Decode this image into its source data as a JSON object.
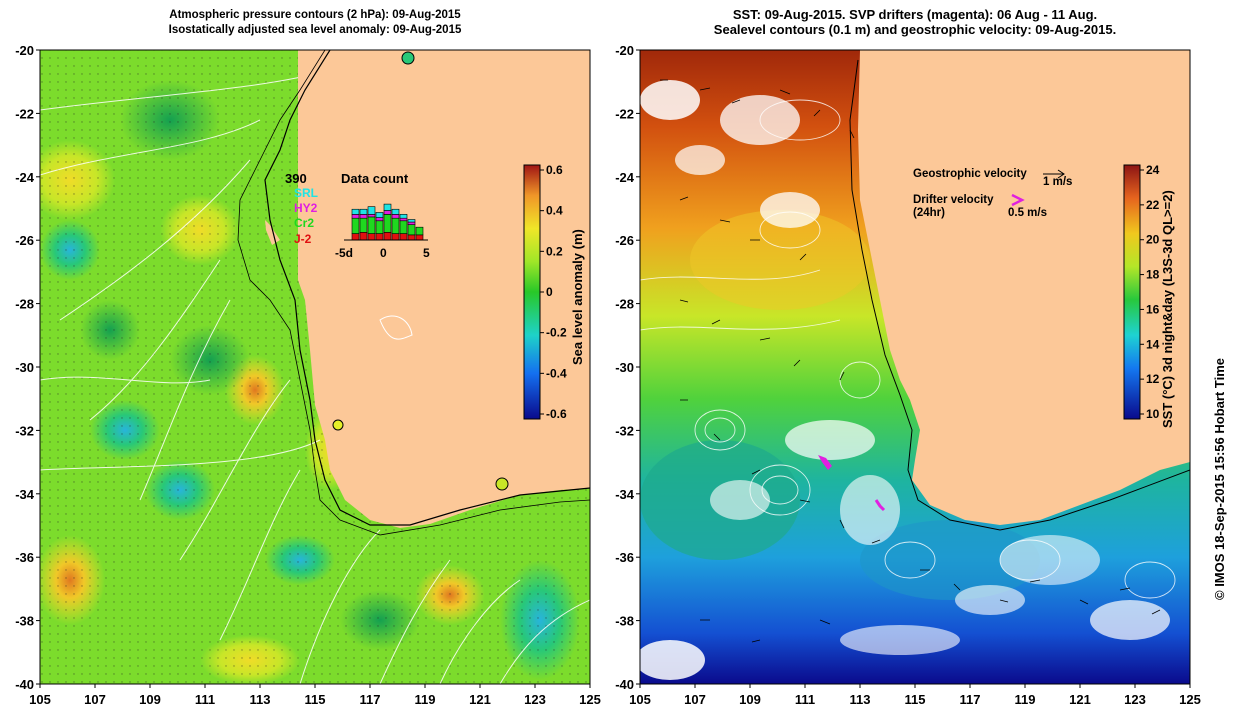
{
  "left_panel": {
    "title_line1": "Atmospheric pressure contours (2 hPa): 09-Aug-2015",
    "title_line2": "Isostatically adjusted sea level anomaly: 09-Aug-2015",
    "colorbar": {
      "label": "Sea level anomaly (m)",
      "min": -0.6,
      "max": 0.6,
      "ticks": [
        "0.6",
        "0.4",
        "0.2",
        "0",
        "-0.2",
        "-0.4",
        "-0.6"
      ]
    },
    "data_count": {
      "title": "Data count",
      "max_label": "390",
      "sats": [
        {
          "name": "SRL",
          "color": "#1fe4e4"
        },
        {
          "name": "HY2",
          "color": "#e01fe0"
        },
        {
          "name": "Cr2",
          "color": "#1fd81f"
        },
        {
          "name": "J-2",
          "color": "#e01010"
        }
      ],
      "xticks": [
        "-5d",
        "0",
        "5"
      ],
      "day_offsets": [
        -5,
        -4,
        -3,
        -2,
        -1,
        0,
        1,
        2,
        3,
        4
      ],
      "stacks": [
        [
          0,
          0,
          0,
          0
        ],
        [
          40,
          30,
          120,
          50
        ],
        [
          40,
          30,
          110,
          60
        ],
        [
          60,
          20,
          130,
          50
        ],
        [
          40,
          25,
          100,
          50
        ],
        [
          50,
          30,
          140,
          60
        ],
        [
          40,
          30,
          120,
          50
        ],
        [
          30,
          20,
          100,
          50
        ],
        [
          20,
          20,
          80,
          40
        ],
        [
          0,
          0,
          60,
          40
        ]
      ]
    }
  },
  "right_panel": {
    "title_line1": "SST: 09-Aug-2015. SVP drifters (magenta): 06 Aug - 11 Aug.",
    "title_line2": "Sealevel contours (0.1 m) and geostrophic velocity: 09-Aug-2015.",
    "colorbar": {
      "label": "SST (°C) 3d night&day (L3S-3d QL>=2)",
      "min": 10,
      "max": 25,
      "ticks": [
        "24",
        "22",
        "20",
        "18",
        "16",
        "14",
        "12",
        "10"
      ]
    },
    "legend": {
      "geo_label": "Geostrophic velocity",
      "geo_scale": "1 m/s",
      "drifter_label": "Drifter velocity",
      "drifter_sub": "(24hr)",
      "drifter_scale": "0.5 m/s"
    }
  },
  "axes": {
    "x_ticks": [
      "105",
      "107",
      "109",
      "111",
      "113",
      "115",
      "117",
      "119",
      "121",
      "123",
      "125"
    ],
    "y_ticks": [
      "-20",
      "-22",
      "-24",
      "-26",
      "-28",
      "-30",
      "-32",
      "-34",
      "-36",
      "-38",
      "-40"
    ]
  },
  "credit": "© IMOS 18-Sep-2015 15:56 Hobart Time",
  "colors": {
    "land": "#fcc898",
    "sla_background": "#7cdc2c"
  }
}
